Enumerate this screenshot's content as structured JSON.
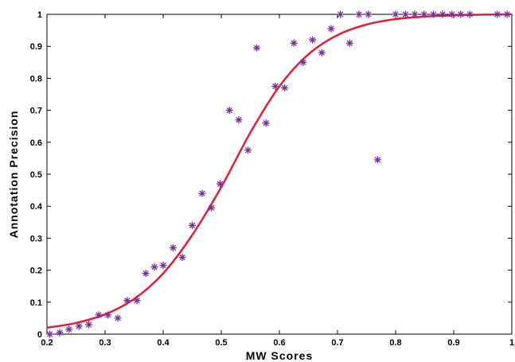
{
  "chart_data": {
    "type": "scatter",
    "title": "",
    "xlabel": "MW Scores",
    "ylabel": "Annotation Precision",
    "xlim": [
      0.2,
      1.0
    ],
    "ylim": [
      0,
      1.0
    ],
    "grid": false,
    "x_ticks": [
      "0.2",
      "0.3",
      "0.4",
      "0.5",
      "0.6",
      "0.7",
      "0.8",
      "0.9",
      "1"
    ],
    "y_ticks": [
      "0",
      "0.1",
      "0.2",
      "0.3",
      "0.4",
      "0.5",
      "0.6",
      "0.7",
      "0.8",
      "0.9",
      "1"
    ],
    "marker_color": "#7b2d9e",
    "curve_color": "#e0203a",
    "series": [
      {
        "type": "scatter",
        "marker": "asterisk",
        "x": [
          0.205,
          0.222,
          0.238,
          0.255,
          0.272,
          0.289,
          0.305,
          0.322,
          0.338,
          0.355,
          0.37,
          0.385,
          0.4,
          0.417,
          0.433,
          0.45,
          0.467,
          0.483,
          0.498,
          0.514,
          0.53,
          0.546,
          0.561,
          0.577,
          0.593,
          0.609,
          0.625,
          0.641,
          0.657,
          0.673,
          0.689,
          0.705,
          0.721,
          0.737,
          0.753,
          0.769,
          0.8,
          0.817,
          0.833,
          0.849,
          0.865,
          0.881,
          0.897,
          0.912,
          0.928,
          0.975,
          0.992
        ],
        "y": [
          0.0,
          0.005,
          0.015,
          0.025,
          0.03,
          0.06,
          0.06,
          0.05,
          0.105,
          0.105,
          0.19,
          0.21,
          0.215,
          0.27,
          0.24,
          0.34,
          0.44,
          0.395,
          0.47,
          0.7,
          0.67,
          0.575,
          0.895,
          0.66,
          0.775,
          0.77,
          0.91,
          0.85,
          0.92,
          0.88,
          0.955,
          1.0,
          0.91,
          1.0,
          1.0,
          0.545,
          1.0,
          1.0,
          1.0,
          1.0,
          1.0,
          1.0,
          1.0,
          1.0,
          1.0,
          1.0,
          1.0
        ]
      },
      {
        "type": "line",
        "x": [
          0.2,
          0.25,
          0.3,
          0.35,
          0.4,
          0.45,
          0.5,
          0.55,
          0.6,
          0.65,
          0.7,
          0.75,
          0.8,
          0.85,
          0.9,
          0.95,
          1.0
        ],
        "y": [
          0.02,
          0.035,
          0.062,
          0.11,
          0.19,
          0.31,
          0.46,
          0.63,
          0.775,
          0.875,
          0.935,
          0.968,
          0.985,
          0.993,
          0.997,
          0.999,
          1.0
        ]
      }
    ]
  }
}
